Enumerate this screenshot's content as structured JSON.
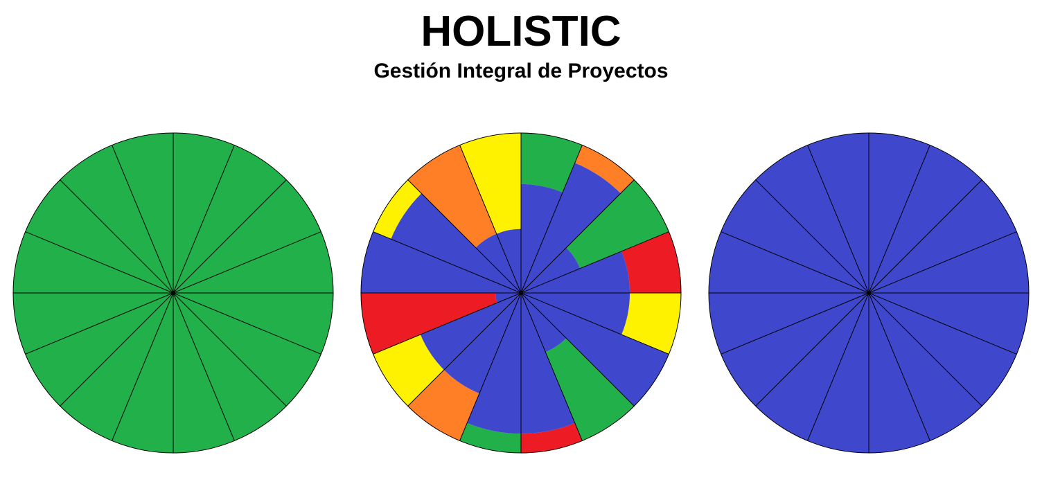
{
  "header": {
    "title": "HOLISTIC",
    "subtitle": "Gestión Integral de Proyectos"
  },
  "colors": {
    "green": "#22b04b",
    "blue": "#3f48cc",
    "yellow": "#fff200",
    "orange": "#ff7f27",
    "red": "#ed1c24",
    "outline": "#000000"
  },
  "wheels": [
    {
      "name": "wheel-left",
      "segments": 16,
      "fill": "green"
    },
    {
      "name": "wheel-center",
      "segments": 16,
      "sectors": [
        {
          "inner": "blue",
          "inner_level": 0.68,
          "outer": "green"
        },
        {
          "inner": "blue",
          "inner_level": 0.88,
          "outer": "orange"
        },
        {
          "inner": "blue",
          "inner_level": 0.4,
          "outer": "green"
        },
        {
          "inner": "blue",
          "inner_level": 0.68,
          "outer": "red"
        },
        {
          "inner": "blue",
          "inner_level": 0.68,
          "outer": "yellow"
        },
        {
          "inner": "blue",
          "inner_level": 1.0,
          "outer": "blue"
        },
        {
          "inner": "blue",
          "inner_level": 0.4,
          "outer": "green"
        },
        {
          "inner": "blue",
          "inner_level": 0.88,
          "outer": "red"
        },
        {
          "inner": "blue",
          "inner_level": 0.88,
          "outer": "green"
        },
        {
          "inner": "blue",
          "inner_level": 0.68,
          "outer": "orange"
        },
        {
          "inner": "blue",
          "inner_level": 0.68,
          "outer": "yellow"
        },
        {
          "inner": "blue",
          "inner_level": 0.16,
          "outer": "red"
        },
        {
          "inner": "blue",
          "inner_level": 1.0,
          "outer": "blue"
        },
        {
          "inner": "blue",
          "inner_level": 0.88,
          "outer": "yellow"
        },
        {
          "inner": "blue",
          "inner_level": 0.4,
          "outer": "orange"
        },
        {
          "inner": "blue",
          "inner_level": 0.4,
          "outer": "yellow"
        }
      ]
    },
    {
      "name": "wheel-right",
      "segments": 16,
      "fill": "blue"
    }
  ]
}
